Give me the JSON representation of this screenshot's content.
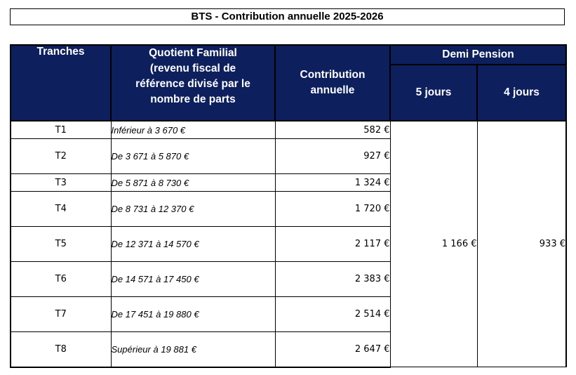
{
  "title": "BTS - Contribution annuelle 2025-2026",
  "headers": {
    "tranches": "Tranches",
    "quotient_line1": "Quotient Familial",
    "quotient_line2": "(revenu fiscal de",
    "quotient_line3": "référence divisé par le",
    "quotient_line4": "nombre de parts",
    "contribution_line1": "Contribution",
    "contribution_line2": "annuelle",
    "demi_pension": "Demi Pension",
    "cinq_jours": "5 jours",
    "quatre_jours": "4 jours"
  },
  "rows": [
    {
      "tranche": "T1",
      "quotient": "Inférieur à  3 670 €",
      "contribution": "582 €"
    },
    {
      "tranche": "T2",
      "quotient": "De  3 671 à  5 870 €",
      "contribution": "927 €"
    },
    {
      "tranche": "T3",
      "quotient": "De 5 871 à 8 730 €",
      "contribution": "1 324 €"
    },
    {
      "tranche": "T4",
      "quotient": "De 8 731 à 12 370 €",
      "contribution": "1 720 €"
    },
    {
      "tranche": "T5",
      "quotient": "De 12 371 à 14 570 €",
      "contribution": "2 117 €"
    },
    {
      "tranche": "T6",
      "quotient": "De 14 571 à 17 450 €",
      "contribution": "2 383 €"
    },
    {
      "tranche": "T7",
      "quotient": "De 17 451 à 19 880 €",
      "contribution": "2 514 €"
    },
    {
      "tranche": "T8",
      "quotient": "Supérieur à  19 881 €",
      "contribution": "2 647 €"
    }
  ],
  "demi_pension_values": {
    "cinq_jours": "1 166 €",
    "quatre_jours": "933 €"
  }
}
